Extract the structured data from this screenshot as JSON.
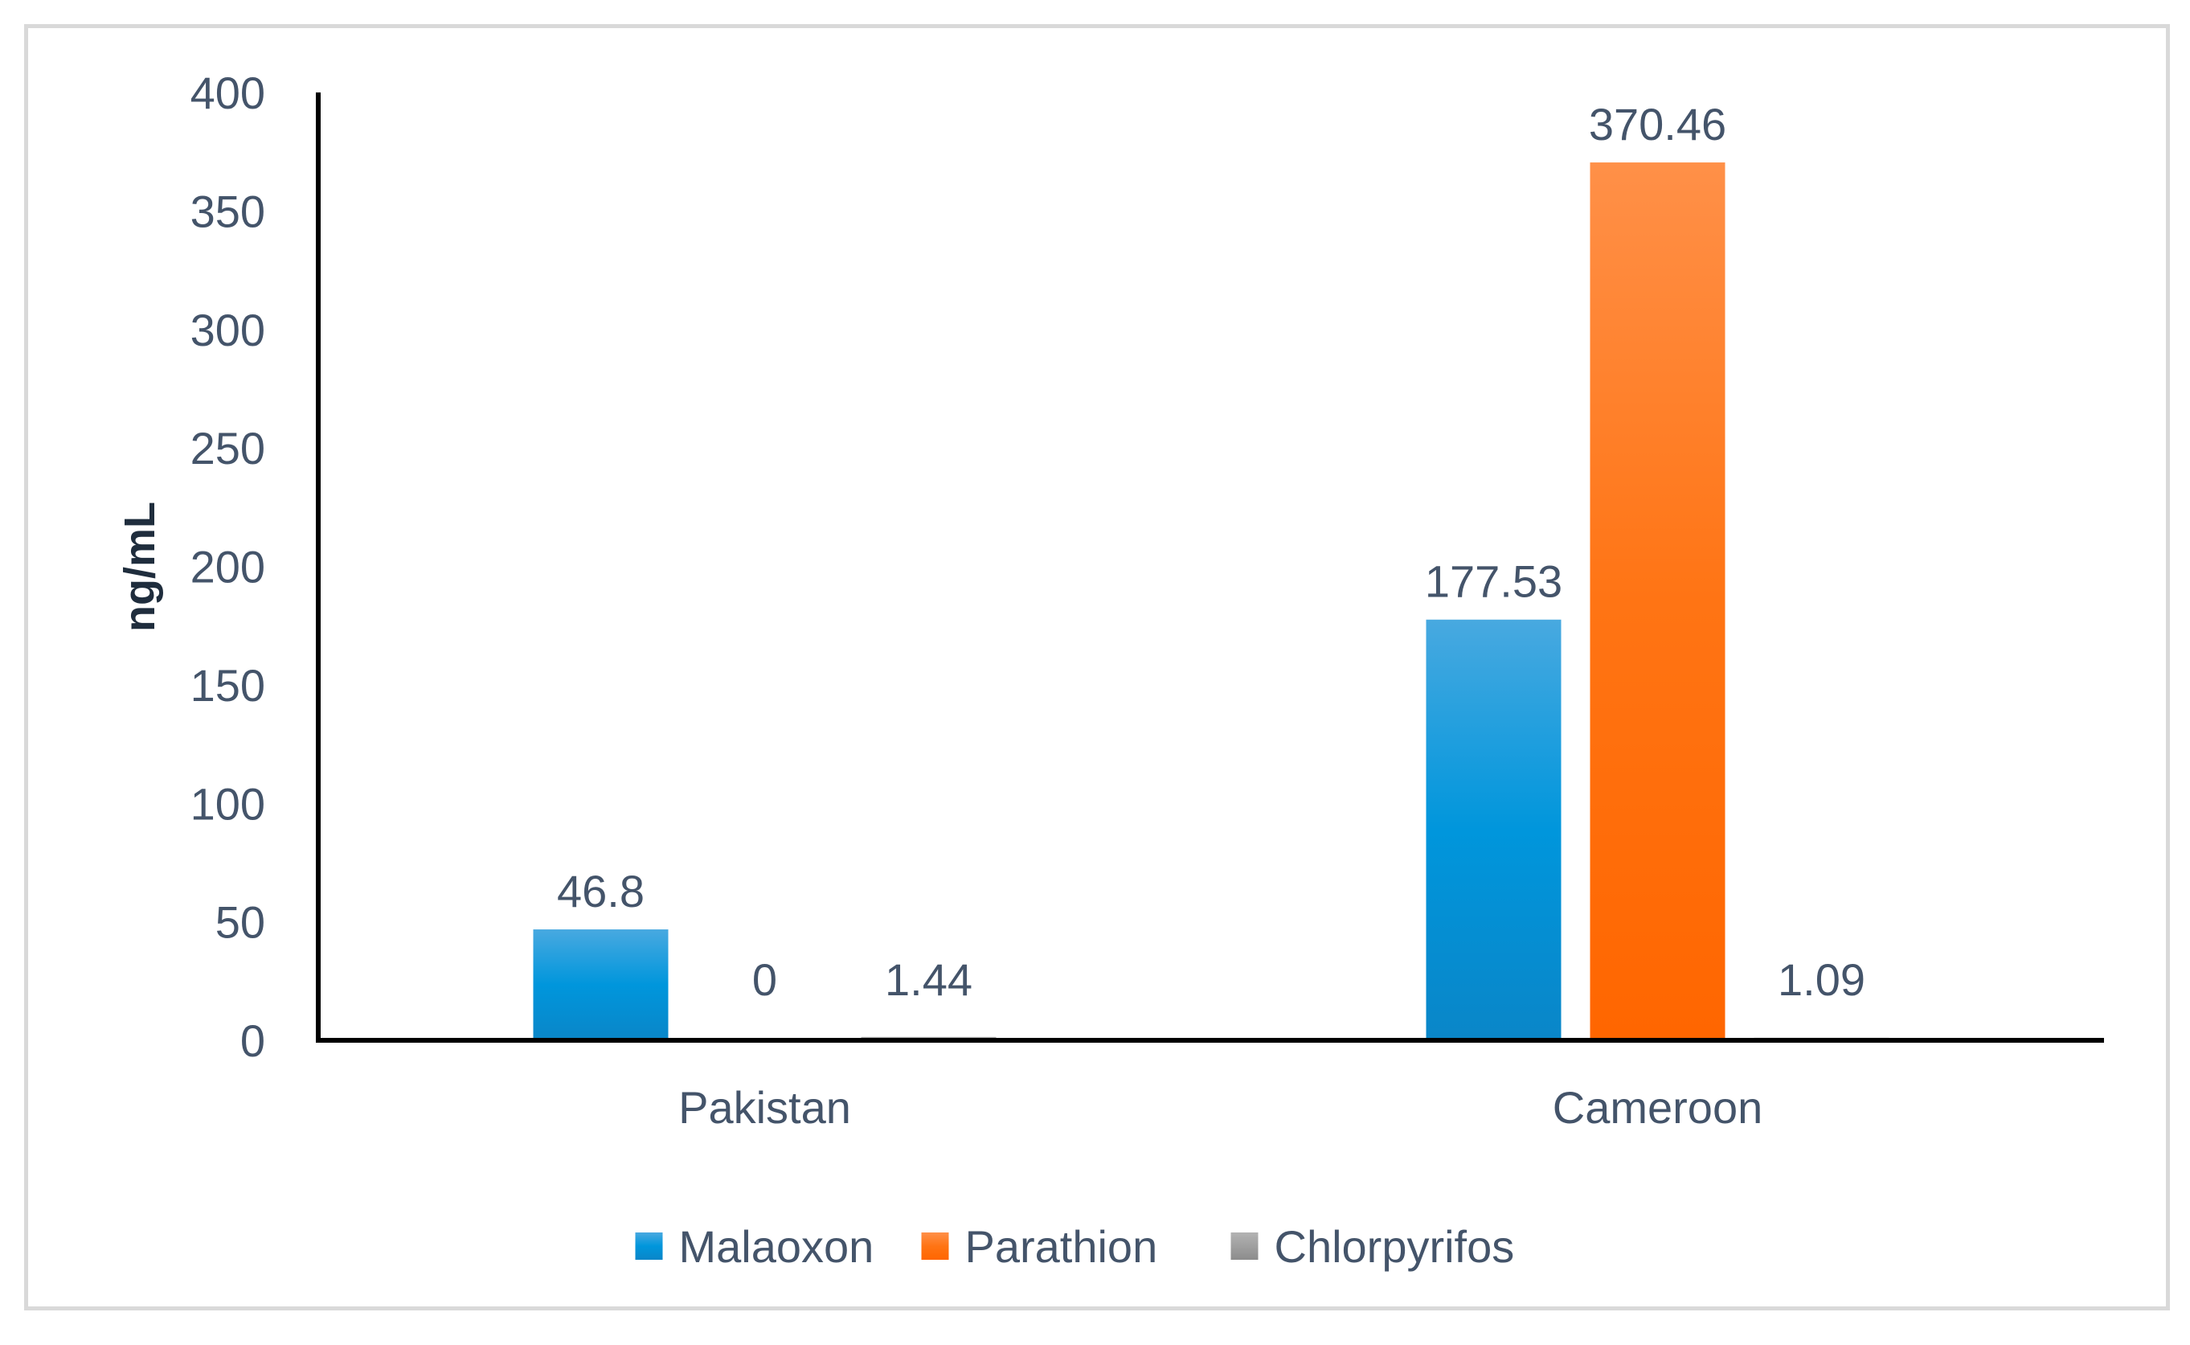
{
  "chart_data": {
    "type": "bar",
    "categories": [
      "Pakistan",
      "Cameroon"
    ],
    "series": [
      {
        "name": "Malaoxon",
        "values": [
          46.8,
          177.53
        ],
        "labels": [
          "46.8",
          "177.53"
        ],
        "color": "#0096dc"
      },
      {
        "name": "Parathion",
        "values": [
          0,
          370.46
        ],
        "labels": [
          "0",
          "370.46"
        ],
        "color": "#ff6600"
      },
      {
        "name": "Chlorpyrifos",
        "values": [
          1.44,
          1.09
        ],
        "labels": [
          "1.44",
          "1.09"
        ],
        "color": "#999999"
      }
    ],
    "ylabel": "ng/mL",
    "xlabel": "",
    "ylim": [
      0,
      400
    ],
    "yticks": [
      0,
      50,
      100,
      150,
      200,
      250,
      300,
      350,
      400
    ],
    "grid": false,
    "legend": "bottom-center"
  }
}
